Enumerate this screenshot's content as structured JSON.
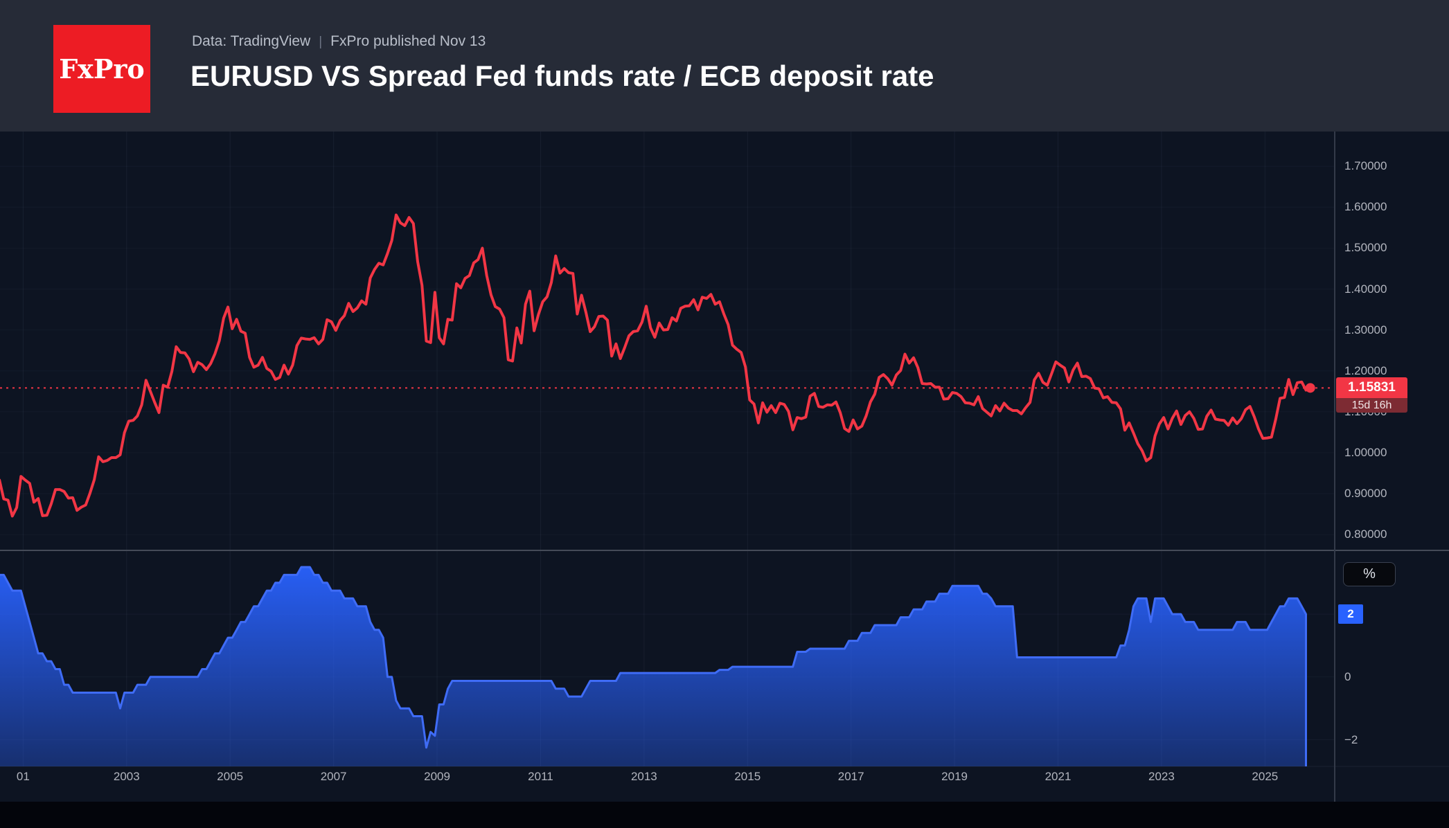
{
  "header": {
    "logo_text": "FxPro",
    "subtitle_source": "Data: TradingView",
    "subtitle_separator": "|",
    "subtitle_published": "FxPro published Nov 13",
    "title": "EURUSD VS Spread Fed funds rate / ECB deposit rate"
  },
  "colors": {
    "header_bg": "#262b37",
    "chart_bg": "#0d1422",
    "logo_red": "#ed1c24",
    "eurusd_red": "#f23645",
    "spread_blue": "#2962ff",
    "badge_countdown_bg": "#7d2b33",
    "tick_text": "#b2b5be",
    "panel_separator": "#454b58",
    "axis_line": "#333a49"
  },
  "current": {
    "price_label": "1.15831",
    "price_value": 1.15831,
    "countdown": "15d 16h",
    "spread_badge_label": "2",
    "spread_value": 2.0
  },
  "axes": {
    "price": {
      "side": "right",
      "ylim": [
        0.76,
        1.79
      ],
      "ticks": [
        {
          "label": "1.70000",
          "value": 1.7
        },
        {
          "label": "1.60000",
          "value": 1.6
        },
        {
          "label": "1.50000",
          "value": 1.5
        },
        {
          "label": "1.40000",
          "value": 1.4
        },
        {
          "label": "1.30000",
          "value": 1.3
        },
        {
          "label": "1.20000",
          "value": 1.2
        },
        {
          "label": "1.10000",
          "value": 1.1
        },
        {
          "label": "1.00000",
          "value": 1.0
        },
        {
          "label": "0.90000",
          "value": 0.9
        },
        {
          "label": "0.80000",
          "value": 0.8
        }
      ]
    },
    "spread": {
      "side": "right",
      "unit_label": "%",
      "ylim": [
        -2.85,
        4.0
      ],
      "ticks": [
        {
          "label": "0",
          "value": 0
        },
        {
          "label": "−2",
          "value": -2
        }
      ]
    },
    "time": {
      "xlim": [
        2000.54,
        2025.95
      ],
      "ticks": [
        {
          "label": "01",
          "year": 2001
        },
        {
          "label": "2003",
          "year": 2003
        },
        {
          "label": "2005",
          "year": 2005
        },
        {
          "label": "2007",
          "year": 2007
        },
        {
          "label": "2009",
          "year": 2009
        },
        {
          "label": "2011",
          "year": 2011
        },
        {
          "label": "2013",
          "year": 2013
        },
        {
          "label": "2015",
          "year": 2015
        },
        {
          "label": "2017",
          "year": 2017
        },
        {
          "label": "2019",
          "year": 2019
        },
        {
          "label": "2021",
          "year": 2021
        },
        {
          "label": "2023",
          "year": 2023
        },
        {
          "label": "2025",
          "year": 2025
        }
      ]
    }
  },
  "chart_data": [
    {
      "type": "line",
      "name": "EURUSD",
      "color": "#f23645",
      "panel": "main",
      "x_start": 2000.542,
      "x_step": 0.083333,
      "last_value": 1.15831,
      "values": [
        0.933,
        0.887,
        0.884,
        0.845,
        0.866,
        0.942,
        0.933,
        0.925,
        0.879,
        0.888,
        0.846,
        0.847,
        0.875,
        0.91,
        0.91,
        0.905,
        0.889,
        0.89,
        0.859,
        0.867,
        0.872,
        0.901,
        0.934,
        0.99,
        0.978,
        0.981,
        0.988,
        0.988,
        0.995,
        1.049,
        1.077,
        1.079,
        1.09,
        1.117,
        1.177,
        1.15,
        1.123,
        1.098,
        1.165,
        1.16,
        1.199,
        1.259,
        1.245,
        1.244,
        1.229,
        1.198,
        1.221,
        1.215,
        1.203,
        1.218,
        1.242,
        1.274,
        1.329,
        1.356,
        1.303,
        1.326,
        1.297,
        1.292,
        1.233,
        1.209,
        1.214,
        1.233,
        1.206,
        1.199,
        1.179,
        1.184,
        1.214,
        1.192,
        1.214,
        1.262,
        1.28,
        1.278,
        1.277,
        1.281,
        1.266,
        1.277,
        1.325,
        1.32,
        1.299,
        1.323,
        1.335,
        1.365,
        1.345,
        1.354,
        1.371,
        1.363,
        1.427,
        1.448,
        1.463,
        1.459,
        1.487,
        1.519,
        1.581,
        1.562,
        1.555,
        1.575,
        1.56,
        1.467,
        1.409,
        1.273,
        1.269,
        1.392,
        1.281,
        1.266,
        1.326,
        1.324,
        1.413,
        1.403,
        1.426,
        1.433,
        1.464,
        1.472,
        1.5,
        1.433,
        1.386,
        1.357,
        1.351,
        1.33,
        1.227,
        1.224,
        1.305,
        1.268,
        1.363,
        1.395,
        1.298,
        1.338,
        1.369,
        1.381,
        1.416,
        1.481,
        1.439,
        1.45,
        1.44,
        1.438,
        1.339,
        1.385,
        1.344,
        1.296,
        1.308,
        1.333,
        1.334,
        1.324,
        1.236,
        1.266,
        1.23,
        1.257,
        1.286,
        1.296,
        1.298,
        1.319,
        1.358,
        1.305,
        1.282,
        1.317,
        1.3,
        1.301,
        1.33,
        1.322,
        1.353,
        1.358,
        1.359,
        1.374,
        1.349,
        1.38,
        1.377,
        1.387,
        1.363,
        1.369,
        1.339,
        1.313,
        1.263,
        1.253,
        1.245,
        1.21,
        1.129,
        1.119,
        1.073,
        1.122,
        1.099,
        1.115,
        1.098,
        1.121,
        1.118,
        1.101,
        1.056,
        1.086,
        1.083,
        1.087,
        1.138,
        1.145,
        1.113,
        1.111,
        1.117,
        1.116,
        1.124,
        1.098,
        1.059,
        1.052,
        1.08,
        1.058,
        1.065,
        1.09,
        1.124,
        1.143,
        1.184,
        1.191,
        1.181,
        1.165,
        1.19,
        1.201,
        1.241,
        1.219,
        1.232,
        1.208,
        1.169,
        1.168,
        1.169,
        1.16,
        1.16,
        1.131,
        1.132,
        1.147,
        1.145,
        1.137,
        1.122,
        1.121,
        1.117,
        1.137,
        1.108,
        1.099,
        1.09,
        1.115,
        1.102,
        1.121,
        1.109,
        1.103,
        1.103,
        1.095,
        1.11,
        1.123,
        1.178,
        1.194,
        1.172,
        1.165,
        1.193,
        1.222,
        1.214,
        1.207,
        1.173,
        1.202,
        1.219,
        1.186,
        1.187,
        1.181,
        1.158,
        1.156,
        1.134,
        1.137,
        1.123,
        1.122,
        1.107,
        1.055,
        1.073,
        1.048,
        1.022,
        1.005,
        0.98,
        0.988,
        1.041,
        1.07,
        1.086,
        1.058,
        1.084,
        1.102,
        1.069,
        1.091,
        1.1,
        1.084,
        1.057,
        1.058,
        1.089,
        1.104,
        1.082,
        1.08,
        1.079,
        1.067,
        1.085,
        1.071,
        1.083,
        1.105,
        1.113,
        1.088,
        1.058,
        1.035,
        1.036,
        1.038,
        1.082,
        1.133,
        1.135,
        1.179,
        1.142,
        1.171,
        1.173,
        1.153,
        1.158
      ]
    },
    {
      "type": "area",
      "name": "Spread Fed funds rate / ECB deposit rate",
      "color": "#2962ff",
      "panel": "lower",
      "x_start": 2000.542,
      "x_step": 0.083333,
      "last_value": 2.0,
      "values": [
        3.25,
        3.25,
        3.0,
        2.75,
        2.75,
        2.75,
        2.25,
        1.75,
        1.25,
        0.75,
        0.75,
        0.5,
        0.5,
        0.25,
        0.25,
        -0.25,
        -0.25,
        -0.5,
        -0.5,
        -0.5,
        -0.5,
        -0.5,
        -0.5,
        -0.5,
        -0.5,
        -0.5,
        -0.5,
        -0.5,
        -1.0,
        -0.5,
        -0.5,
        -0.5,
        -0.25,
        -0.25,
        -0.25,
        0,
        0,
        0,
        0,
        0,
        0,
        0,
        0,
        0,
        0,
        0,
        0,
        0.25,
        0.25,
        0.5,
        0.75,
        0.75,
        1.0,
        1.25,
        1.25,
        1.5,
        1.75,
        1.75,
        2.0,
        2.25,
        2.25,
        2.5,
        2.75,
        2.75,
        3.0,
        3.0,
        3.25,
        3.25,
        3.25,
        3.25,
        3.5,
        3.5,
        3.5,
        3.25,
        3.25,
        3.0,
        3.0,
        2.75,
        2.75,
        2.75,
        2.5,
        2.5,
        2.5,
        2.25,
        2.25,
        2.25,
        1.75,
        1.5,
        1.5,
        1.25,
        0,
        0,
        -0.75,
        -1.0,
        -1.0,
        -1.0,
        -1.25,
        -1.25,
        -1.25,
        -2.25,
        -1.75,
        -1.875,
        -0.875,
        -0.875,
        -0.375,
        -0.125,
        -0.125,
        -0.125,
        -0.125,
        -0.125,
        -0.125,
        -0.125,
        -0.125,
        -0.125,
        -0.125,
        -0.125,
        -0.125,
        -0.125,
        -0.125,
        -0.125,
        -0.125,
        -0.125,
        -0.125,
        -0.125,
        -0.125,
        -0.125,
        -0.125,
        -0.125,
        -0.125,
        -0.375,
        -0.375,
        -0.375,
        -0.625,
        -0.625,
        -0.625,
        -0.625,
        -0.375,
        -0.125,
        -0.125,
        -0.125,
        -0.125,
        -0.125,
        -0.125,
        -0.125,
        0.125,
        0.125,
        0.125,
        0.125,
        0.125,
        0.125,
        0.125,
        0.125,
        0.125,
        0.125,
        0.125,
        0.125,
        0.125,
        0.125,
        0.125,
        0.125,
        0.125,
        0.125,
        0.125,
        0.125,
        0.125,
        0.125,
        0.125,
        0.225,
        0.225,
        0.225,
        0.325,
        0.325,
        0.325,
        0.325,
        0.325,
        0.325,
        0.325,
        0.325,
        0.325,
        0.325,
        0.325,
        0.325,
        0.325,
        0.325,
        0.325,
        0.8,
        0.8,
        0.8,
        0.9,
        0.9,
        0.9,
        0.9,
        0.9,
        0.9,
        0.9,
        0.9,
        0.9,
        1.15,
        1.15,
        1.15,
        1.4,
        1.4,
        1.4,
        1.65,
        1.65,
        1.65,
        1.65,
        1.65,
        1.65,
        1.9,
        1.9,
        1.9,
        2.15,
        2.15,
        2.15,
        2.4,
        2.4,
        2.4,
        2.65,
        2.65,
        2.65,
        2.9,
        2.9,
        2.9,
        2.9,
        2.9,
        2.9,
        2.9,
        2.65,
        2.65,
        2.5,
        2.25,
        2.25,
        2.25,
        2.25,
        2.25,
        0.625,
        0.625,
        0.625,
        0.625,
        0.625,
        0.625,
        0.625,
        0.625,
        0.625,
        0.625,
        0.625,
        0.625,
        0.625,
        0.625,
        0.625,
        0.625,
        0.625,
        0.625,
        0.625,
        0.625,
        0.625,
        0.625,
        0.625,
        0.625,
        1.0,
        1.0,
        1.5,
        2.25,
        2.5,
        2.5,
        2.5,
        1.75,
        2.5,
        2.5,
        2.5,
        2.25,
        2.0,
        2.0,
        2.0,
        1.75,
        1.75,
        1.75,
        1.5,
        1.5,
        1.5,
        1.5,
        1.5,
        1.5,
        1.5,
        1.5,
        1.5,
        1.75,
        1.75,
        1.75,
        1.5,
        1.5,
        1.5,
        1.5,
        1.5,
        1.75,
        2.0,
        2.25,
        2.25,
        2.5,
        2.5,
        2.5,
        2.25,
        2.0
      ]
    }
  ]
}
